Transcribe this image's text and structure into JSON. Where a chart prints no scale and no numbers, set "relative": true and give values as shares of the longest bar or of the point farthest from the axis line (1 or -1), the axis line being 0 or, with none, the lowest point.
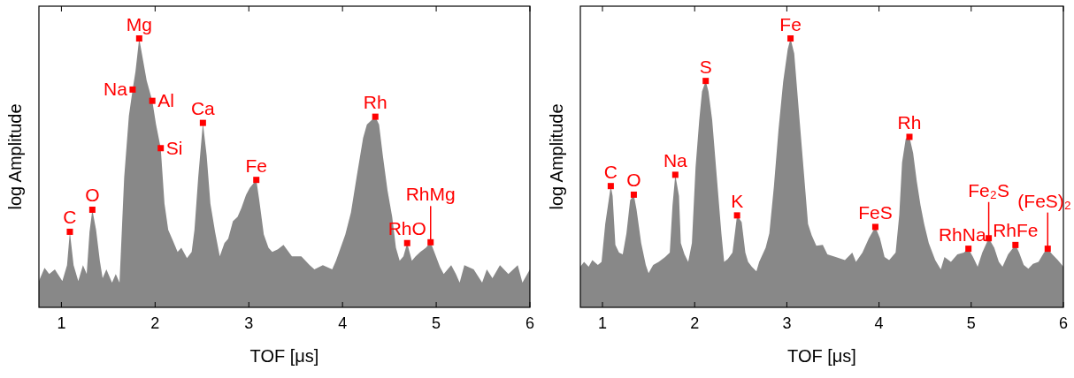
{
  "chart_data": [
    {
      "type": "area",
      "xlabel": "TOF [μs]",
      "ylabel": "log Amplitude",
      "relative": true,
      "xlim": [
        0.76,
        6
      ],
      "xticks": [
        1,
        2,
        3,
        4,
        5,
        6
      ],
      "series": [
        {
          "color": "#888888",
          "x": [
            0.76,
            0.82,
            0.87,
            0.93,
            1.01,
            1.06,
            1.09,
            1.13,
            1.18,
            1.23,
            1.27,
            1.3,
            1.33,
            1.37,
            1.41,
            1.44,
            1.48,
            1.54,
            1.58,
            1.62,
            1.67,
            1.72,
            1.76,
            1.79,
            1.83,
            1.86,
            1.91,
            1.97,
            2.01,
            2.06,
            2.1,
            2.14,
            2.19,
            2.24,
            2.28,
            2.34,
            2.39,
            2.42,
            2.46,
            2.51,
            2.55,
            2.59,
            2.64,
            2.69,
            2.74,
            2.78,
            2.83,
            2.88,
            2.92,
            2.97,
            3.01,
            3.08,
            3.11,
            3.16,
            3.21,
            3.25,
            3.31,
            3.37,
            3.46,
            3.56,
            3.65,
            3.7,
            3.79,
            3.89,
            3.93,
            4.03,
            4.09,
            4.15,
            4.22,
            4.26,
            4.31,
            4.35,
            4.39,
            4.43,
            4.48,
            4.53,
            4.57,
            4.61,
            4.65,
            4.69,
            4.74,
            4.78,
            4.83,
            4.89,
            4.94,
            4.99,
            5.04,
            5.08,
            5.16,
            5.21,
            5.25,
            5.3,
            5.4,
            5.49,
            5.54,
            5.6,
            5.68,
            5.77,
            5.87,
            5.92,
            6.0
          ],
          "values": [
            0.098,
            0.147,
            0.124,
            0.141,
            0.098,
            0.157,
            0.281,
            0.157,
            0.098,
            0.157,
            0.124,
            0.281,
            0.363,
            0.288,
            0.173,
            0.108,
            0.141,
            0.092,
            0.124,
            0.092,
            0.484,
            0.712,
            0.81,
            0.876,
            1.0,
            0.941,
            0.843,
            0.768,
            0.68,
            0.592,
            0.386,
            0.288,
            0.248,
            0.206,
            0.222,
            0.183,
            0.206,
            0.288,
            0.484,
            0.686,
            0.565,
            0.386,
            0.281,
            0.19,
            0.239,
            0.255,
            0.32,
            0.337,
            0.369,
            0.418,
            0.444,
            0.474,
            0.402,
            0.271,
            0.222,
            0.206,
            0.216,
            0.232,
            0.19,
            0.19,
            0.157,
            0.141,
            0.157,
            0.141,
            0.173,
            0.271,
            0.353,
            0.484,
            0.631,
            0.68,
            0.696,
            0.709,
            0.68,
            0.565,
            0.435,
            0.337,
            0.222,
            0.173,
            0.19,
            0.239,
            0.173,
            0.19,
            0.206,
            0.222,
            0.242,
            0.196,
            0.15,
            0.124,
            0.157,
            0.124,
            0.092,
            0.157,
            0.141,
            0.092,
            0.141,
            0.108,
            0.157,
            0.124,
            0.157,
            0.092,
            0.141
          ]
        },
        {
          "type": "scatter",
          "color": "#ff0000",
          "marker": "square",
          "x": [
            1.09,
            1.33,
            1.76,
            1.83,
            1.97,
            2.06,
            2.51,
            3.08,
            4.35,
            4.69,
            4.94
          ],
          "values": [
            0.281,
            0.363,
            0.81,
            1.0,
            0.768,
            0.592,
            0.686,
            0.474,
            0.709,
            0.239,
            0.242
          ]
        }
      ],
      "annotations": [
        {
          "text": "C",
          "x": 1.09,
          "y": 0.281
        },
        {
          "text": "O",
          "x": 1.33,
          "y": 0.363
        },
        {
          "text": "Na",
          "x": 1.76,
          "y": 0.81
        },
        {
          "text": "Mg",
          "x": 1.83,
          "y": 1.0
        },
        {
          "text": "Al",
          "x": 1.97,
          "y": 0.768
        },
        {
          "text": "Si",
          "x": 2.06,
          "y": 0.592
        },
        {
          "text": "Ca",
          "x": 2.51,
          "y": 0.686
        },
        {
          "text": "Fe",
          "x": 3.08,
          "y": 0.474
        },
        {
          "text": "Rh",
          "x": 4.35,
          "y": 0.709
        },
        {
          "text": "RhO",
          "x": 4.69,
          "y": 0.239
        },
        {
          "text": "RhMg",
          "x": 4.94,
          "y": 0.242
        }
      ]
    },
    {
      "type": "area",
      "xlabel": "TOF [μs]",
      "ylabel": "log Amplitude",
      "relative": true,
      "xlim": [
        0.76,
        6
      ],
      "xticks": [
        1,
        2,
        3,
        4,
        5,
        6
      ],
      "series": [
        {
          "color": "#888888",
          "x": [
            0.76,
            0.8,
            0.85,
            0.89,
            0.95,
            0.99,
            1.03,
            1.09,
            1.11,
            1.14,
            1.18,
            1.22,
            1.26,
            1.3,
            1.34,
            1.37,
            1.42,
            1.47,
            1.5,
            1.55,
            1.61,
            1.68,
            1.73,
            1.76,
            1.79,
            1.83,
            1.85,
            1.89,
            1.93,
            1.97,
            2.01,
            2.05,
            2.08,
            2.12,
            2.15,
            2.19,
            2.24,
            2.29,
            2.32,
            2.36,
            2.41,
            2.46,
            2.51,
            2.55,
            2.58,
            2.62,
            2.67,
            2.7,
            2.77,
            2.81,
            2.86,
            2.91,
            2.96,
            3.01,
            3.04,
            3.08,
            3.13,
            3.18,
            3.23,
            3.27,
            3.32,
            3.39,
            3.44,
            3.53,
            3.63,
            3.71,
            3.75,
            3.82,
            3.89,
            3.96,
            4.01,
            4.06,
            4.11,
            4.18,
            4.22,
            4.25,
            4.29,
            4.33,
            4.37,
            4.41,
            4.45,
            4.49,
            4.54,
            4.61,
            4.67,
            4.71,
            4.78,
            4.85,
            4.92,
            4.97,
            5.02,
            5.07,
            5.12,
            5.19,
            5.25,
            5.3,
            5.34,
            5.4,
            5.48,
            5.52,
            5.57,
            5.62,
            5.67,
            5.73,
            5.79,
            5.83,
            5.88,
            5.94,
            6.0
          ],
          "values": [
            0.151,
            0.169,
            0.151,
            0.176,
            0.158,
            0.169,
            0.31,
            0.451,
            0.415,
            0.232,
            0.204,
            0.197,
            0.275,
            0.398,
            0.419,
            0.363,
            0.239,
            0.158,
            0.127,
            0.158,
            0.169,
            0.187,
            0.204,
            0.38,
            0.493,
            0.415,
            0.239,
            0.197,
            0.169,
            0.239,
            0.521,
            0.697,
            0.803,
            0.842,
            0.803,
            0.697,
            0.486,
            0.275,
            0.169,
            0.18,
            0.204,
            0.342,
            0.317,
            0.204,
            0.169,
            0.151,
            0.134,
            0.169,
            0.222,
            0.275,
            0.451,
            0.662,
            0.838,
            0.961,
            1.0,
            0.944,
            0.732,
            0.521,
            0.31,
            0.268,
            0.229,
            0.232,
            0.197,
            0.187,
            0.176,
            0.204,
            0.169,
            0.204,
            0.257,
            0.299,
            0.257,
            0.187,
            0.176,
            0.204,
            0.345,
            0.539,
            0.627,
            0.634,
            0.574,
            0.468,
            0.38,
            0.31,
            0.239,
            0.176,
            0.141,
            0.187,
            0.169,
            0.197,
            0.204,
            0.218,
            0.187,
            0.151,
            0.204,
            0.257,
            0.222,
            0.169,
            0.151,
            0.197,
            0.232,
            0.204,
            0.158,
            0.144,
            0.162,
            0.169,
            0.204,
            0.218,
            0.197,
            0.176,
            0.151
          ]
        },
        {
          "type": "scatter",
          "color": "#ff0000",
          "marker": "square",
          "x": [
            1.09,
            1.34,
            1.79,
            2.12,
            2.46,
            3.04,
            3.96,
            4.33,
            4.97,
            5.19,
            5.48,
            5.83
          ],
          "values": [
            0.451,
            0.419,
            0.493,
            0.842,
            0.342,
            1.0,
            0.299,
            0.634,
            0.218,
            0.257,
            0.232,
            0.218
          ]
        }
      ],
      "annotations": [
        {
          "text": "C",
          "x": 1.09,
          "y": 0.451
        },
        {
          "text": "O",
          "x": 1.34,
          "y": 0.419
        },
        {
          "text": "Na",
          "x": 1.79,
          "y": 0.493
        },
        {
          "text": "S",
          "x": 2.12,
          "y": 0.842
        },
        {
          "text": "K",
          "x": 2.46,
          "y": 0.342
        },
        {
          "text": "Fe",
          "x": 3.04,
          "y": 1.0
        },
        {
          "text": "FeS",
          "x": 3.96,
          "y": 0.299
        },
        {
          "text": "Rh",
          "x": 4.33,
          "y": 0.634
        },
        {
          "text": "RhNa",
          "x": 4.97,
          "y": 0.218
        },
        {
          "text": "Fe₂S",
          "x": 5.19,
          "y": 0.257
        },
        {
          "text": "RhFe",
          "x": 5.48,
          "y": 0.232
        },
        {
          "text": "(FeS)₂",
          "x": 5.83,
          "y": 0.218
        }
      ]
    }
  ]
}
